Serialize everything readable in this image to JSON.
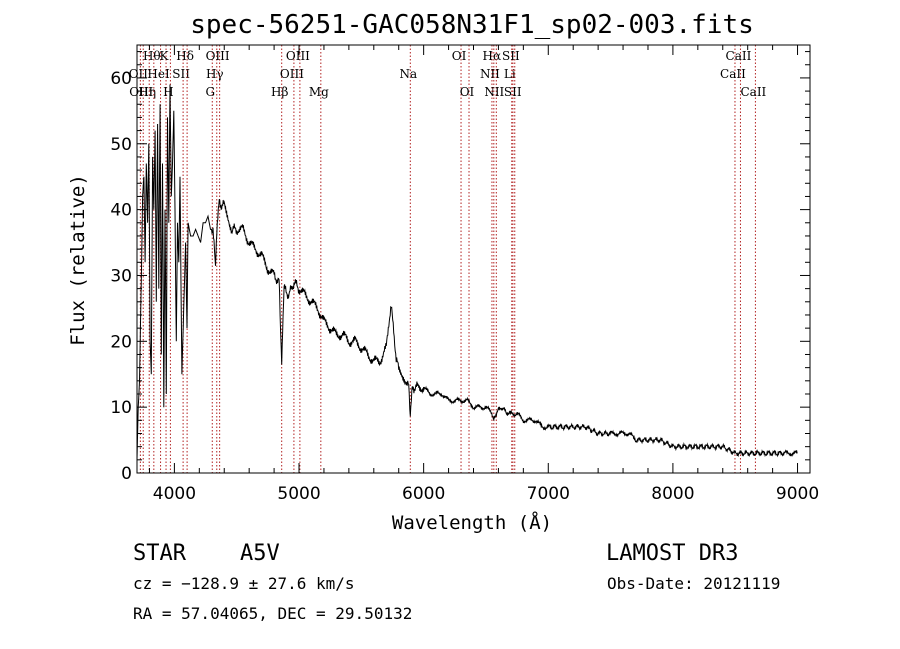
{
  "chart_data": {
    "type": "line",
    "title": "spec-56251-GAC058N31F1_sp02-003.fits",
    "xlabel": "Wavelength (Å)",
    "ylabel": "Flux (relative)",
    "xlim": [
      3700,
      9100
    ],
    "ylim": [
      0,
      65
    ],
    "xticks": [
      4000,
      5000,
      6000,
      7000,
      8000,
      9000
    ],
    "yticks": [
      0,
      10,
      20,
      30,
      40,
      50,
      60
    ],
    "series": [
      {
        "name": "flux",
        "x": [
          3700,
          3710,
          3720,
          3735,
          3745,
          3755,
          3765,
          3775,
          3785,
          3795,
          3805,
          3815,
          3825,
          3835,
          3845,
          3855,
          3865,
          3875,
          3885,
          3895,
          3905,
          3915,
          3925,
          3935,
          3945,
          3955,
          3965,
          3975,
          3985,
          3995,
          4005,
          4015,
          4025,
          4035,
          4045,
          4060,
          4075,
          4090,
          4101,
          4110,
          4130,
          4150,
          4170,
          4190,
          4210,
          4230,
          4250,
          4270,
          4290,
          4310,
          4330,
          4340,
          4360,
          4380,
          4400,
          4430,
          4460,
          4500,
          4550,
          4600,
          4650,
          4700,
          4750,
          4800,
          4840,
          4861,
          4880,
          4920,
          4960,
          5000,
          5050,
          5100,
          5150,
          5200,
          5250,
          5300,
          5350,
          5400,
          5450,
          5500,
          5550,
          5600,
          5650,
          5700,
          5720,
          5740,
          5760,
          5780,
          5800,
          5830,
          5860,
          5880,
          5893,
          5910,
          5950,
          6000,
          6050,
          6100,
          6150,
          6200,
          6250,
          6300,
          6350,
          6400,
          6450,
          6500,
          6550,
          6563,
          6580,
          6620,
          6680,
          6750,
          6800,
          6850,
          6900,
          6950,
          7000,
          7100,
          7200,
          7300,
          7400,
          7500,
          7550,
          7600,
          7650,
          7700,
          7800,
          7900,
          8000,
          8100,
          8200,
          8300,
          8400,
          8500,
          8600,
          8700,
          8800,
          8900,
          8950,
          9000
        ],
        "values": [
          2,
          10,
          14,
          30,
          42,
          45,
          32,
          47,
          38,
          50,
          20,
          15,
          48,
          40,
          52,
          26,
          53,
          28,
          56,
          18,
          47,
          10,
          40,
          12,
          54,
          38,
          59,
          42,
          47,
          55,
          40,
          20,
          38,
          32,
          45,
          15,
          25,
          35,
          22,
          38,
          36,
          36,
          37,
          36,
          35,
          38,
          38,
          39,
          37,
          37,
          31,
          36,
          42,
          40,
          41,
          39,
          37,
          37,
          37,
          35,
          34,
          33,
          31,
          30,
          29,
          17,
          28,
          27,
          29,
          28,
          27,
          26,
          25,
          23,
          22,
          21,
          21,
          20,
          20,
          19,
          18,
          17,
          17,
          19,
          23,
          25,
          22,
          17,
          16,
          15,
          14,
          13,
          9,
          13,
          13,
          13,
          12,
          12,
          12,
          11,
          11,
          11,
          11,
          10,
          10,
          10,
          9,
          8,
          9,
          10,
          9,
          9,
          8,
          8,
          8,
          7,
          7,
          7,
          7,
          7,
          6,
          6,
          6,
          6,
          6,
          5,
          5,
          5,
          4,
          4,
          4,
          4,
          4,
          3,
          3,
          3,
          3,
          3,
          3,
          3
        ]
      }
    ],
    "line_markers": [
      {
        "wl": 3727,
        "label": "OII",
        "row": 1
      },
      {
        "wl": 3750,
        "label": "OIII",
        "row": 2
      },
      {
        "wl": 3798,
        "label": "Hη",
        "row": 2
      },
      {
        "wl": 3835,
        "label": "Hθ",
        "row": 0
      },
      {
        "wl": 3889,
        "label": "HeI",
        "row": 1
      },
      {
        "wl": 3933,
        "label": "K",
        "row": 0
      },
      {
        "wl": 3968,
        "label": "H",
        "row": 2
      },
      {
        "wl": 4070,
        "label": "SII",
        "row": 1
      },
      {
        "wl": 4102,
        "label": "Hδ",
        "row": 0
      },
      {
        "wl": 4304,
        "label": "G",
        "row": 2
      },
      {
        "wl": 4340,
        "label": "Hγ",
        "row": 1
      },
      {
        "wl": 4363,
        "label": "OIII",
        "row": 0
      },
      {
        "wl": 4861,
        "label": "Hβ",
        "row": 2
      },
      {
        "wl": 4959,
        "label": "OIII",
        "row": 1
      },
      {
        "wl": 5007,
        "label": "OIII",
        "row": 0
      },
      {
        "wl": 5175,
        "label": "Mg",
        "row": 2
      },
      {
        "wl": 5893,
        "label": "Na",
        "row": 1
      },
      {
        "wl": 6300,
        "label": "OI",
        "row": 0
      },
      {
        "wl": 6364,
        "label": "OI",
        "row": 2
      },
      {
        "wl": 6548,
        "label": "NII",
        "row": 1
      },
      {
        "wl": 6563,
        "label": "Hα",
        "row": 0
      },
      {
        "wl": 6583,
        "label": "NII",
        "row": 2
      },
      {
        "wl": 6707,
        "label": "Li",
        "row": 1
      },
      {
        "wl": 6716,
        "label": "SII",
        "row": 0
      },
      {
        "wl": 6731,
        "label": "SII",
        "row": 2
      },
      {
        "wl": 8498,
        "label": "CaII",
        "row": 1
      },
      {
        "wl": 8542,
        "label": "CaII",
        "row": 0
      },
      {
        "wl": 8662,
        "label": "CaII",
        "row": 2
      }
    ],
    "line_marker_color": "#b22222",
    "line_color": "#000000"
  },
  "info": {
    "class": "STAR",
    "subclass": "A5V",
    "survey": "LAMOST DR3",
    "cz": "cz = −128.9 ± 27.6 km/s",
    "obsdate": "Obs-Date: 20121119",
    "radec": "RA =  57.04065, DEC =  29.50132"
  }
}
